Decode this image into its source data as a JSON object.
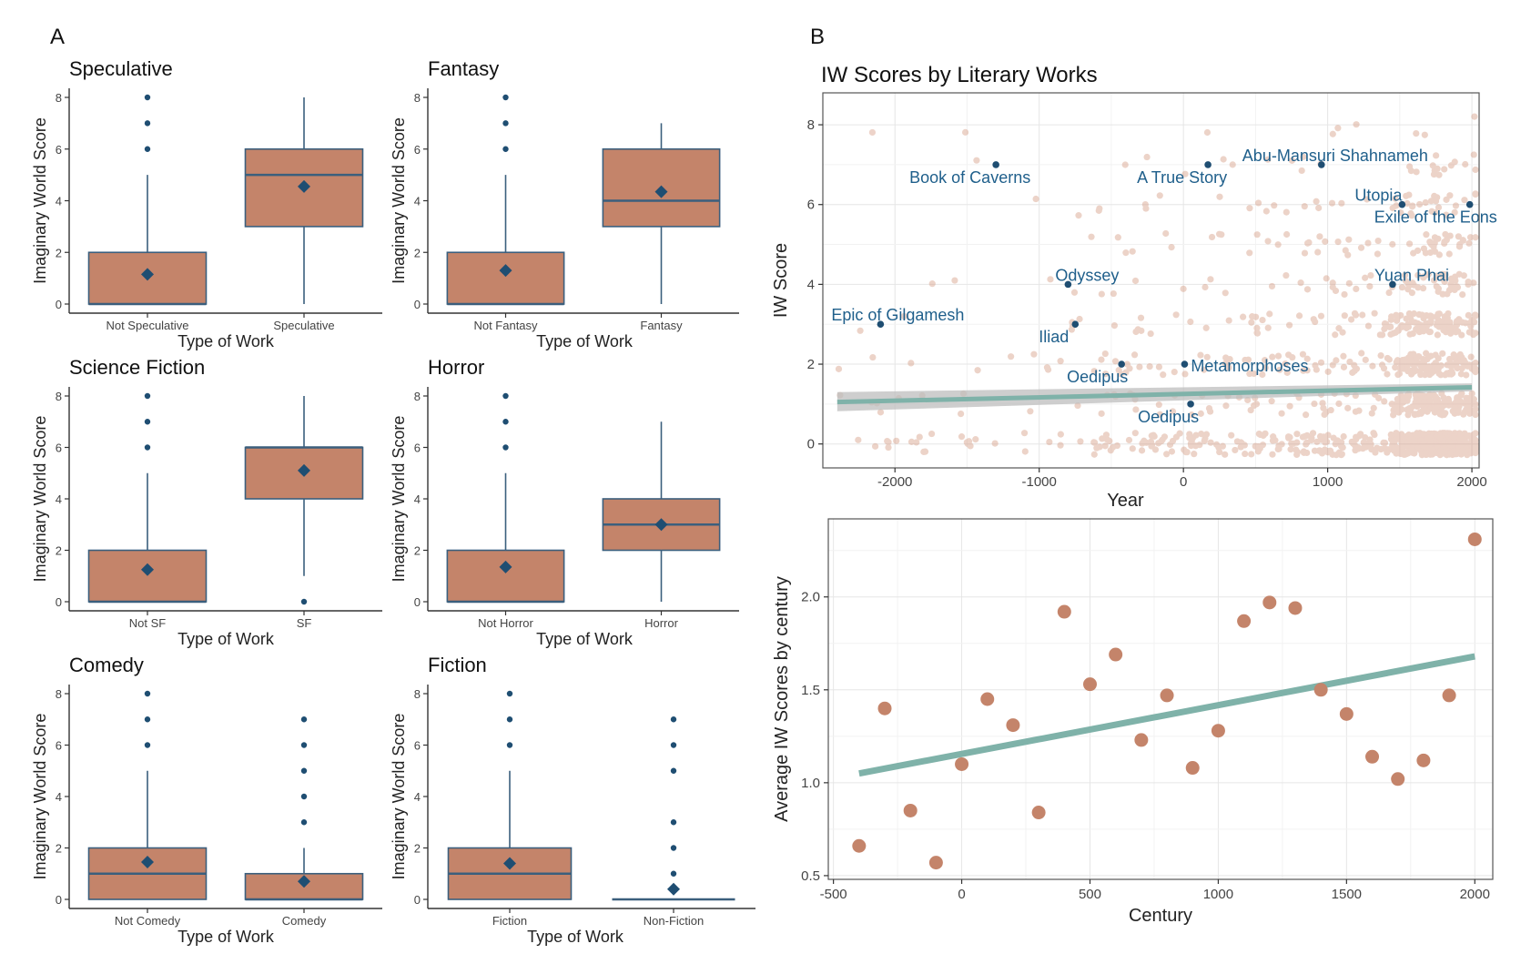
{
  "colors": {
    "box_fill": "#c4846a",
    "box_stroke": "#3b5f7d",
    "point": "#1f4e72",
    "scatter_point": "#d4977e",
    "trend_line": "#7fb2a9",
    "ci_band": "#bdbdbd",
    "label": "#1f5f8b"
  },
  "panel_letters": {
    "a": "A",
    "b": "B"
  },
  "chart_data": [
    {
      "id": "speculative",
      "type": "box",
      "title": "Speculative",
      "xlabel": "Type of Work",
      "ylabel": "Imaginary World Score",
      "ylim": [
        0,
        8
      ],
      "yticks": [
        0,
        2,
        4,
        6,
        8
      ],
      "categories": [
        "Not Speculative",
        "Speculative"
      ],
      "boxes": [
        {
          "q1": 0,
          "median": 0,
          "q3": 2,
          "whisker_low": 0,
          "whisker_high": 5,
          "mean": 1.15,
          "outliers": [
            6,
            7,
            8
          ]
        },
        {
          "q1": 3,
          "median": 5,
          "q3": 6,
          "whisker_low": 0,
          "whisker_high": 8,
          "mean": 4.55,
          "outliers": []
        }
      ]
    },
    {
      "id": "fantasy",
      "type": "box",
      "title": "Fantasy",
      "xlabel": "Type of Work",
      "ylabel": "Imaginary World Score",
      "ylim": [
        0,
        8
      ],
      "yticks": [
        0,
        2,
        4,
        6,
        8
      ],
      "categories": [
        "Not Fantasy",
        "Fantasy"
      ],
      "boxes": [
        {
          "q1": 0,
          "median": 0,
          "q3": 2,
          "whisker_low": 0,
          "whisker_high": 5,
          "mean": 1.3,
          "outliers": [
            6,
            7,
            8
          ]
        },
        {
          "q1": 3,
          "median": 4,
          "q3": 6,
          "whisker_low": 0,
          "whisker_high": 7,
          "mean": 4.35,
          "outliers": []
        }
      ]
    },
    {
      "id": "science-fiction",
      "type": "box",
      "title": "Science Fiction",
      "xlabel": "Type of Work",
      "ylabel": "Imaginary World Score",
      "ylim": [
        0,
        8
      ],
      "yticks": [
        0,
        2,
        4,
        6,
        8
      ],
      "categories": [
        "Not SF",
        "SF"
      ],
      "boxes": [
        {
          "q1": 0,
          "median": 0,
          "q3": 2,
          "whisker_low": 0,
          "whisker_high": 5,
          "mean": 1.25,
          "outliers": [
            6,
            7,
            8
          ]
        },
        {
          "q1": 4,
          "median": 6,
          "q3": 6,
          "whisker_low": 1,
          "whisker_high": 8,
          "mean": 5.1,
          "outliers": [
            0
          ]
        }
      ]
    },
    {
      "id": "horror",
      "type": "box",
      "title": "Horror",
      "xlabel": "Type of Work",
      "ylabel": "Imaginary World Score",
      "ylim": [
        0,
        8
      ],
      "yticks": [
        0,
        2,
        4,
        6,
        8
      ],
      "categories": [
        "Not Horror",
        "Horror"
      ],
      "boxes": [
        {
          "q1": 0,
          "median": 0,
          "q3": 2,
          "whisker_low": 0,
          "whisker_high": 5,
          "mean": 1.35,
          "outliers": [
            6,
            7,
            8
          ]
        },
        {
          "q1": 2,
          "median": 3,
          "q3": 4,
          "whisker_low": 0,
          "whisker_high": 7,
          "mean": 3.0,
          "outliers": []
        }
      ]
    },
    {
      "id": "comedy",
      "type": "box",
      "title": "Comedy",
      "xlabel": "Type of Work",
      "ylabel": "Imaginary World Score",
      "ylim": [
        0,
        8
      ],
      "yticks": [
        0,
        2,
        4,
        6,
        8
      ],
      "categories": [
        "Not Comedy",
        "Comedy"
      ],
      "boxes": [
        {
          "q1": 0,
          "median": 1,
          "q3": 2,
          "whisker_low": 0,
          "whisker_high": 5,
          "mean": 1.45,
          "outliers": [
            6,
            7,
            8
          ]
        },
        {
          "q1": 0,
          "median": 0,
          "q3": 1,
          "whisker_low": 0,
          "whisker_high": 2,
          "mean": 0.7,
          "outliers": [
            3,
            4,
            5,
            6,
            7
          ]
        }
      ]
    },
    {
      "id": "fiction",
      "type": "box",
      "title": "Fiction",
      "xlabel": "Type of Work",
      "ylabel": "Imaginary World Score",
      "ylim": [
        0,
        8
      ],
      "yticks": [
        0,
        2,
        4,
        6,
        8
      ],
      "categories": [
        "Fiction",
        "Non-Fiction"
      ],
      "boxes": [
        {
          "q1": 0,
          "median": 1,
          "q3": 2,
          "whisker_low": 0,
          "whisker_high": 5,
          "mean": 1.4,
          "outliers": [
            6,
            7,
            8
          ]
        },
        {
          "q1": 0,
          "median": 0,
          "q3": 0,
          "whisker_low": 0,
          "whisker_high": 0,
          "mean": 0.4,
          "outliers": [
            1,
            2,
            3,
            5,
            6,
            7
          ]
        }
      ]
    },
    {
      "id": "iw-by-year",
      "type": "scatter",
      "title": "IW Scores by Literary Works",
      "xlabel": "Year",
      "ylabel": "IW Score",
      "xlim": [
        -2500,
        2050
      ],
      "ylim": [
        -0.6,
        8.8
      ],
      "xticks": [
        -2000,
        -1000,
        0,
        1000,
        2000
      ],
      "yticks": [
        0,
        2,
        4,
        6,
        8
      ],
      "grid": true,
      "trend": {
        "x": [
          -2400,
          2000
        ],
        "y": [
          1.05,
          1.42
        ],
        "ci_low": [
          0.82,
          1.32
        ],
        "ci_high": [
          1.3,
          1.52
        ]
      },
      "highlighted": [
        {
          "label": "Book of Caverns",
          "x": -1300,
          "y": 7
        },
        {
          "label": "A True Story",
          "x": 170,
          "y": 7
        },
        {
          "label": "Abu-Mansuri Shahnameh",
          "x": 957,
          "y": 7
        },
        {
          "label": "Utopia",
          "x": 1516,
          "y": 6
        },
        {
          "label": "Exile of the Eons",
          "x": 1985,
          "y": 6
        },
        {
          "label": "Odyssey",
          "x": -800,
          "y": 4
        },
        {
          "label": "Yuan Phai",
          "x": 1450,
          "y": 4
        },
        {
          "label": "Epic of Gilgamesh",
          "x": -2100,
          "y": 3
        },
        {
          "label": "Iliad",
          "x": -750,
          "y": 3
        },
        {
          "label": "Oedipus",
          "x": -429,
          "y": 2
        },
        {
          "label": "Metamorphoses",
          "x": 8,
          "y": 2
        },
        {
          "label": "Oedipus",
          "x": 50,
          "y": 1
        }
      ]
    },
    {
      "id": "iw-by-century",
      "type": "scatter",
      "title": "",
      "xlabel": "Century",
      "ylabel": "Average IW Scores by century",
      "xlim": [
        -520,
        2070
      ],
      "ylim": [
        0.48,
        2.42
      ],
      "xticks": [
        -500,
        0,
        500,
        1000,
        1500,
        2000
      ],
      "yticks": [
        0.5,
        1.0,
        1.5,
        2.0
      ],
      "ytick_labels": [
        "0.5",
        "1.0",
        "1.5",
        "2.0"
      ],
      "grid": true,
      "points": [
        {
          "x": -400,
          "y": 0.66
        },
        {
          "x": -300,
          "y": 1.4
        },
        {
          "x": -200,
          "y": 0.85
        },
        {
          "x": -100,
          "y": 0.57
        },
        {
          "x": 0,
          "y": 1.1
        },
        {
          "x": 100,
          "y": 1.45
        },
        {
          "x": 200,
          "y": 1.31
        },
        {
          "x": 300,
          "y": 0.84
        },
        {
          "x": 400,
          "y": 1.92
        },
        {
          "x": 500,
          "y": 1.53
        },
        {
          "x": 600,
          "y": 1.69
        },
        {
          "x": 700,
          "y": 1.23
        },
        {
          "x": 800,
          "y": 1.47
        },
        {
          "x": 900,
          "y": 1.08
        },
        {
          "x": 1000,
          "y": 1.28
        },
        {
          "x": 1100,
          "y": 1.87
        },
        {
          "x": 1200,
          "y": 1.97
        },
        {
          "x": 1300,
          "y": 1.94
        },
        {
          "x": 1400,
          "y": 1.5
        },
        {
          "x": 1500,
          "y": 1.37
        },
        {
          "x": 1600,
          "y": 1.14
        },
        {
          "x": 1700,
          "y": 1.02
        },
        {
          "x": 1800,
          "y": 1.12
        },
        {
          "x": 1900,
          "y": 1.47
        },
        {
          "x": 2000,
          "y": 2.31
        }
      ],
      "trend": {
        "x": [
          -400,
          2000
        ],
        "y": [
          1.05,
          1.68
        ]
      }
    }
  ]
}
